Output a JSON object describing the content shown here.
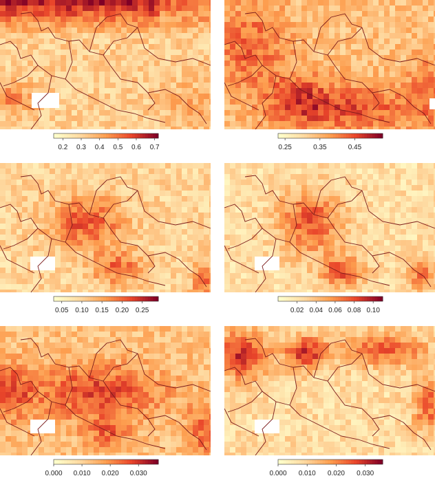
{
  "panels": [
    {
      "id": "p1",
      "colorbar": {
        "range": [
          0.15,
          0.72
        ],
        "ticks": [
          "0.2",
          "0.3",
          "0.4",
          "0.5",
          "0.6",
          "0.7"
        ],
        "tick_values": [
          0.2,
          0.3,
          0.4,
          0.5,
          0.6,
          0.7
        ]
      }
    },
    {
      "id": "p2",
      "colorbar": {
        "range": [
          0.23,
          0.53
        ],
        "ticks": [
          "0.25",
          "0.35",
          "0.45"
        ],
        "tick_values": [
          0.25,
          0.35,
          0.45
        ]
      }
    },
    {
      "id": "p3",
      "colorbar": {
        "range": [
          0.03,
          0.29
        ],
        "ticks": [
          "0.05",
          "0.10",
          "0.15",
          "0.20",
          "0.25"
        ],
        "tick_values": [
          0.05,
          0.1,
          0.15,
          0.2,
          0.25
        ]
      }
    },
    {
      "id": "p4",
      "colorbar": {
        "range": [
          0.0,
          0.11
        ],
        "ticks": [
          "0.02",
          "0.04",
          "0.06",
          "0.08",
          "0.10"
        ],
        "tick_values": [
          0.02,
          0.04,
          0.06,
          0.08,
          0.1
        ]
      }
    },
    {
      "id": "p5",
      "colorbar": {
        "range": [
          0.0,
          0.037
        ],
        "ticks": [
          "0.000",
          "0.010",
          "0.020",
          "0.030"
        ],
        "tick_values": [
          0.0,
          0.01,
          0.02,
          0.03
        ]
      }
    },
    {
      "id": "p6",
      "colorbar": {
        "range": [
          0.0,
          0.036
        ],
        "ticks": [
          "0.000",
          "0.010",
          "0.020",
          "0.030"
        ],
        "tick_values": [
          0.0,
          0.01,
          0.02,
          0.03
        ]
      }
    }
  ],
  "colors": {
    "low": "#ffffcc",
    "mid1": "#fed9a0",
    "mid2": "#fd9e4f",
    "mid3": "#e9452a",
    "high": "#800026",
    "border": "#7a1a1a"
  },
  "icons": [
    "heatmap",
    "country-border"
  ]
}
